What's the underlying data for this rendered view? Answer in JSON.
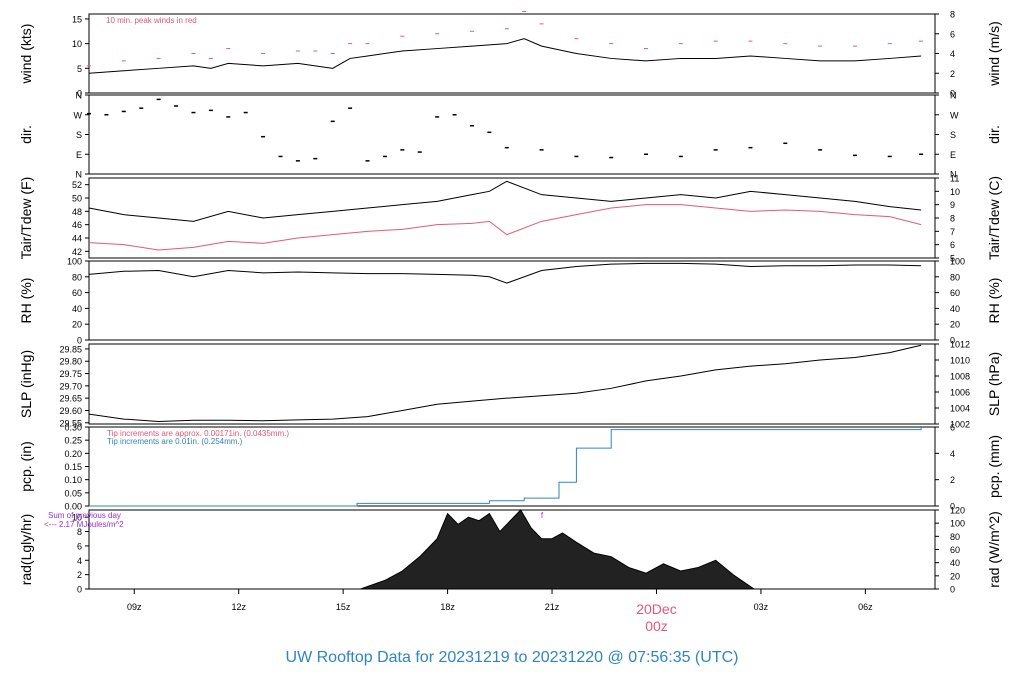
{
  "footer_title": "UW Rooftop Data for 20231219  to  20231220 @ 07:56:35  (UTC)",
  "colors": {
    "line": "#000000",
    "red": "#e05a78",
    "blue": "#2e86c1",
    "purple": "#9b30d9",
    "title": "#2e86c1"
  },
  "chart_data": [
    {
      "type": "line",
      "left_label": "wind (kts)",
      "right_label": "wind (m/s)",
      "annotation": "10 min. peak winds in red",
      "left_ticks": [
        0,
        5,
        10,
        15
      ],
      "right_ticks": [
        0,
        2,
        4,
        6,
        8
      ],
      "ylim": [
        0,
        16
      ],
      "x_hours": [
        0,
        1,
        2,
        3,
        3.5,
        4,
        5,
        6,
        6.5,
        7,
        7.5,
        8,
        9,
        10,
        11,
        12,
        12.5,
        13,
        14,
        15,
        16,
        17,
        18,
        19,
        20,
        21,
        22,
        23,
        23.9
      ],
      "series": [
        {
          "values": [
            4,
            4.5,
            5,
            5.5,
            5,
            6,
            5.5,
            6,
            5.5,
            5,
            7,
            7.5,
            8.5,
            9,
            9.5,
            10,
            11,
            9.5,
            8,
            7,
            6.5,
            7,
            7,
            7.5,
            7,
            6.5,
            6.5,
            7,
            7.5
          ]
        },
        {
          "values": [
            5.5,
            6.5,
            7,
            8,
            7,
            9,
            8,
            8.5,
            8.5,
            8,
            10,
            10,
            11.5,
            12,
            12.5,
            13,
            16.5,
            14,
            11,
            10,
            9,
            10,
            10.5,
            10.5,
            10,
            9.5,
            9.5,
            10,
            10.5
          ]
        }
      ]
    },
    {
      "type": "scatter",
      "left_label": "dir.",
      "right_label": "dir.",
      "left_ticks": [
        "N",
        "E",
        "S",
        "W",
        "N"
      ],
      "right_ticks": [
        "N",
        "E",
        "S",
        "W",
        "N"
      ],
      "ylim": [
        0,
        360
      ],
      "x_hours": [
        0,
        0.5,
        1,
        1.5,
        2,
        2.5,
        3,
        3.5,
        4,
        4.5,
        5,
        5.5,
        6,
        6.5,
        7,
        7.5,
        8,
        8.5,
        9,
        9.5,
        10,
        10.5,
        11,
        11.5,
        12,
        13,
        14,
        15,
        16,
        17,
        18,
        19,
        20,
        21,
        22,
        23,
        23.9
      ],
      "series": [
        {
          "values": [
            275,
            270,
            285,
            300,
            340,
            310,
            280,
            290,
            260,
            280,
            170,
            80,
            60,
            70,
            240,
            300,
            60,
            80,
            110,
            100,
            260,
            270,
            220,
            190,
            120,
            110,
            80,
            75,
            90,
            80,
            110,
            120,
            140,
            110,
            85,
            80,
            90
          ]
        }
      ]
    },
    {
      "type": "line",
      "left_label": "Tair/Tdew (F)",
      "right_label": "Tair/Tdew (C)",
      "left_ticks": [
        42,
        44,
        46,
        48,
        50,
        52
      ],
      "right_ticks": [
        5,
        6,
        7,
        8,
        9,
        10,
        11
      ],
      "ylim": [
        41,
        53
      ],
      "x_hours": [
        0,
        1,
        2,
        3,
        4,
        5,
        6,
        7,
        8,
        9,
        10,
        11,
        11.5,
        12,
        13,
        14,
        15,
        16,
        17,
        18,
        19,
        20,
        21,
        22,
        23,
        23.9
      ],
      "series": [
        {
          "values": [
            48.5,
            47.5,
            47,
            46.5,
            48,
            47,
            47.5,
            48,
            48.5,
            49,
            49.5,
            50.5,
            51,
            52.5,
            50.5,
            50,
            49.5,
            50,
            50.5,
            50,
            51,
            50.5,
            50,
            49.5,
            48.7,
            48.2
          ]
        },
        {
          "values": [
            43.3,
            43,
            42.2,
            42.6,
            43.5,
            43.2,
            44,
            44.5,
            45,
            45.3,
            46,
            46.2,
            46.5,
            44.5,
            46.5,
            47.5,
            48.5,
            49,
            49,
            48.5,
            48,
            48.2,
            48,
            47.5,
            47.2,
            46
          ]
        }
      ]
    },
    {
      "type": "line",
      "left_label": "RH (%)",
      "right_label": "RH (%)",
      "left_ticks": [
        0,
        20,
        40,
        60,
        80,
        100
      ],
      "right_ticks": [
        0,
        20,
        40,
        60,
        80,
        100
      ],
      "ylim": [
        0,
        100
      ],
      "x_hours": [
        0,
        1,
        2,
        3,
        4,
        5,
        6,
        7,
        8,
        9,
        10,
        11,
        11.5,
        12,
        13,
        14,
        15,
        16,
        17,
        18,
        19,
        20,
        21,
        22,
        23,
        23.9
      ],
      "series": [
        {
          "values": [
            83,
            87,
            88,
            80,
            88,
            85,
            86,
            85,
            84,
            84,
            83,
            82,
            80,
            72,
            88,
            93,
            96,
            97,
            97,
            96,
            93,
            94,
            94,
            95,
            95,
            94
          ]
        }
      ]
    },
    {
      "type": "line",
      "left_label": "SLP (inHg)",
      "right_label": "SLP (hPa)",
      "left_ticks": [
        "29.55",
        "29.60",
        "29.65",
        "29.70",
        "29.75",
        "29.80",
        "29.85"
      ],
      "right_ticks": [
        1002,
        1004,
        1006,
        1008,
        1010,
        1012
      ],
      "ylim": [
        29.545,
        29.87
      ],
      "x_hours": [
        0,
        1,
        2,
        3,
        4,
        5,
        6,
        7,
        8,
        9,
        10,
        11,
        12,
        13,
        14,
        15,
        16,
        17,
        18,
        19,
        20,
        21,
        22,
        23,
        23.9
      ],
      "series": [
        {
          "values": [
            29.585,
            29.565,
            29.555,
            29.56,
            29.56,
            29.558,
            29.562,
            29.565,
            29.575,
            29.6,
            29.625,
            29.638,
            29.65,
            29.66,
            29.67,
            29.69,
            29.72,
            29.74,
            29.765,
            29.78,
            29.79,
            29.805,
            29.815,
            29.835,
            29.865
          ]
        }
      ]
    },
    {
      "type": "line",
      "left_label": "pcp. (in)",
      "right_label": "pcp. (mm)",
      "annotations": [
        "Tip increments are approx. 0.00171in. (0.0435mm.)",
        "Tip increments are 0.01in. (0.254mm.)"
      ],
      "left_ticks": [
        "0.00",
        "0.05",
        "0.10",
        "0.15",
        "0.20",
        "0.25",
        "0.30"
      ],
      "right_ticks": [
        0,
        2,
        4,
        6
      ],
      "ylim": [
        0,
        0.3
      ],
      "x_hours": [
        0,
        6.3,
        7.7,
        11.5,
        12.5,
        13.5,
        14,
        15,
        21.8,
        23.9
      ],
      "series": [
        {
          "values": [
            0,
            0,
            0.01,
            0.02,
            0.03,
            0.09,
            0.22,
            0.29,
            0.29,
            0.3
          ]
        }
      ]
    },
    {
      "type": "area",
      "left_label": "rad(Lgly/hr)",
      "right_label": "rad (W/m^2)",
      "annotations": [
        "Sum of previous day",
        "<--- 2.17 MJoules/m^2",
        "f"
      ],
      "left_ticks": [
        0,
        2,
        4,
        6,
        8,
        10
      ],
      "right_ticks": [
        0,
        20,
        40,
        60,
        80,
        100,
        120
      ],
      "ylim": [
        0,
        11
      ],
      "x_hours": [
        7.8,
        8.5,
        9,
        9.5,
        10,
        10.3,
        10.6,
        10.9,
        11.2,
        11.5,
        11.8,
        12.1,
        12.4,
        12.7,
        13,
        13.3,
        13.6,
        14,
        14.5,
        15,
        15.5,
        16,
        16.5,
        17,
        17.5,
        18,
        18.5,
        19.1
      ],
      "series": [
        {
          "values": [
            0,
            1.2,
            2.5,
            4.5,
            7,
            10.5,
            9,
            10,
            9.5,
            10.5,
            8,
            9.5,
            11,
            8.5,
            7,
            7,
            7.8,
            6.5,
            5,
            4.5,
            3,
            2.2,
            3.5,
            2.5,
            3,
            4,
            2,
            0
          ]
        }
      ],
      "xticks": [
        "09z",
        "12z",
        "15z",
        "18z",
        "21z",
        "03z",
        "06z"
      ],
      "date_marker": {
        "label": "20Dec",
        "sublabel": "00z"
      }
    }
  ]
}
